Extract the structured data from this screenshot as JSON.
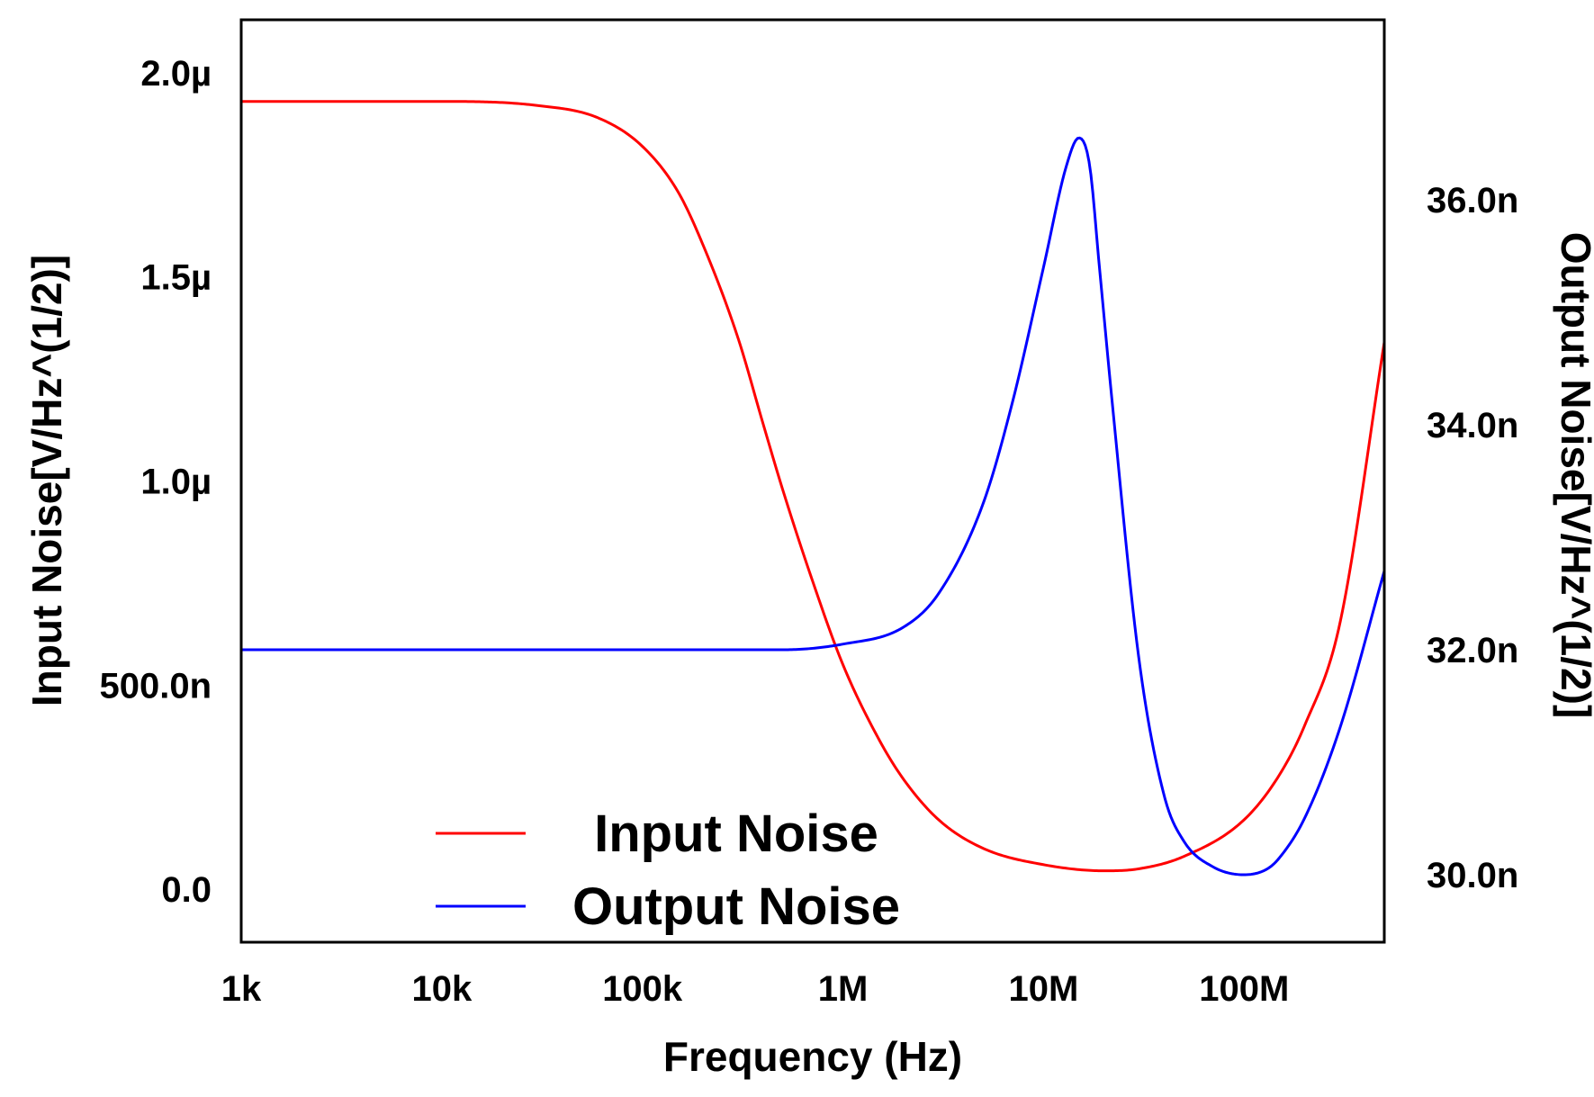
{
  "chart_data": {
    "type": "line",
    "title": "",
    "xlabel": "Frequency (Hz)",
    "ylabel_left": "Input Noise[V/Hz^(1/2)]",
    "ylabel_right": "Output Noise[V/Hz^(1/2)]",
    "x_scale": "log",
    "xlim": [
      1000,
      500000000
    ],
    "ylim_left": [
      -0.13,
      2.13
    ],
    "ylim_right": [
      29.4,
      37.6
    ],
    "grid": false,
    "legend_position": "bottom-center",
    "x_ticks": [
      {
        "value": 1000,
        "label": "1k"
      },
      {
        "value": 10000,
        "label": "10k"
      },
      {
        "value": 100000,
        "label": "100k"
      },
      {
        "value": 1000000,
        "label": "1M"
      },
      {
        "value": 10000000,
        "label": "10M"
      },
      {
        "value": 100000000,
        "label": "100M"
      }
    ],
    "y_ticks_left": [
      {
        "value": 0.0,
        "label": "0.0"
      },
      {
        "value": 0.5,
        "label": "500.0n"
      },
      {
        "value": 1.0,
        "label": "1.0µ"
      },
      {
        "value": 1.5,
        "label": "1.5µ"
      },
      {
        "value": 2.0,
        "label": "2.0µ"
      }
    ],
    "y_ticks_right": [
      {
        "value": 30.0,
        "label": "30.0n"
      },
      {
        "value": 32.0,
        "label": "32.0n"
      },
      {
        "value": 34.0,
        "label": "34.0n"
      },
      {
        "value": 36.0,
        "label": "36.0n"
      }
    ],
    "series": [
      {
        "name": "Input Noise",
        "axis": "left",
        "unit": "µV/Hz^(1/2)",
        "color": "#ff0000",
        "x": [
          1000,
          10000,
          30000,
          60000,
          100000,
          150000,
          200000,
          300000,
          400000,
          500000,
          700000,
          1000000,
          1500000,
          2000000,
          3000000,
          5000000,
          10000000,
          20000000,
          30000000,
          50000000,
          100000000,
          150000000,
          200000000,
          300000000,
          500000000
        ],
        "values": [
          1.93,
          1.93,
          1.92,
          1.89,
          1.82,
          1.71,
          1.58,
          1.35,
          1.14,
          0.98,
          0.76,
          0.55,
          0.37,
          0.27,
          0.17,
          0.1,
          0.06,
          0.045,
          0.05,
          0.08,
          0.17,
          0.28,
          0.4,
          0.65,
          1.34
        ]
      },
      {
        "name": "Output Noise",
        "axis": "right",
        "unit": "nV/Hz^(1/2)",
        "color": "#0000ff",
        "x": [
          1000,
          10000,
          100000,
          500000,
          1000000,
          2000000,
          3000000,
          5000000,
          7000000,
          10000000,
          13000000,
          15000000,
          17000000,
          19000000,
          22000000,
          30000000,
          40000000,
          50000000,
          70000000,
          100000000,
          130000000,
          150000000,
          200000000,
          300000000,
          500000000
        ],
        "values": [
          32.0,
          32.0,
          32.0,
          32.0,
          32.05,
          32.2,
          32.5,
          33.3,
          34.2,
          35.4,
          36.3,
          36.55,
          36.3,
          35.4,
          34.2,
          31.9,
          30.7,
          30.3,
          30.07,
          30.0,
          30.05,
          30.15,
          30.5,
          31.3,
          32.7
        ]
      }
    ]
  }
}
